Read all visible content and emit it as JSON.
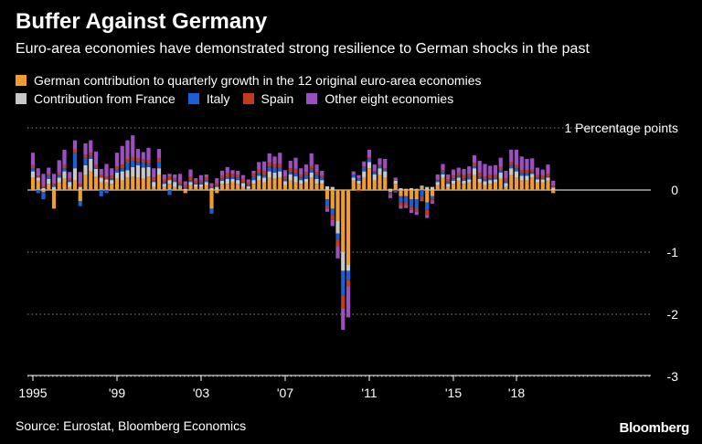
{
  "title": "Buffer Against Germany",
  "subtitle": "Euro-area economies have demonstrated strong resilience to German shocks in the past",
  "source": "Source: Eurostat, Bloomberg Economics",
  "brand": "Bloomberg",
  "legend": [
    {
      "label": "German contribution to quarterly growth in the 12 original euro-area economies",
      "color": "#f19c2f"
    },
    {
      "label": "Contribution from France",
      "color": "#c8c8c8"
    },
    {
      "label": "Italy",
      "color": "#1b5fd6"
    },
    {
      "label": "Spain",
      "color": "#c43a1f"
    },
    {
      "label": "Other eight economies",
      "color": "#9d4fc1"
    }
  ],
  "chart_data": {
    "type": "bar",
    "stacked": true,
    "title": "Buffer Against Germany",
    "ylabel": "Percentage points",
    "y_unit_label": "1 Percentage points",
    "ylim": [
      -3,
      1
    ],
    "yticks": [
      1,
      0,
      -1,
      -2,
      -3
    ],
    "ytick_labels": [
      "1 Percentage points",
      "0",
      "-1",
      "-2",
      "-3"
    ],
    "x_tick_labels": [
      "1995",
      "'99",
      "'03",
      "'07",
      "'11",
      "'15",
      "'18"
    ],
    "x_tick_years": [
      1995,
      1999,
      2003,
      2007,
      2011,
      2015,
      2018
    ],
    "start": 1995.0,
    "quarter_step": 0.25,
    "series": [
      {
        "name": "German contribution to quarterly growth in the 12 original euro-area economies",
        "color": "#f19c2f",
        "values": [
          0.2,
          0.15,
          -0.03,
          0.1,
          -0.3,
          0.12,
          0.18,
          0.05,
          0.15,
          -0.18,
          0.25,
          0.3,
          0.22,
          0.12,
          0.12,
          0.1,
          0.18,
          0.15,
          0.2,
          0.22,
          0.2,
          0.18,
          0.22,
          0.05,
          0.25,
          0.05,
          0.1,
          0.05,
          0.05,
          -0.05,
          0.08,
          0.05,
          0.05,
          0.08,
          -0.3,
          -0.05,
          0.1,
          0.1,
          0.12,
          0.1,
          0.05,
          0.02,
          0.1,
          0.15,
          0.12,
          0.2,
          0.18,
          0.2,
          0.08,
          0.15,
          0.12,
          0.1,
          0.12,
          0.2,
          0.1,
          0.1,
          -0.15,
          -0.3,
          -0.5,
          -1.0,
          -1.2,
          0.15,
          0.1,
          0.2,
          0.35,
          0.15,
          0.25,
          0.2,
          -0.03,
          0.1,
          -0.1,
          -0.1,
          -0.15,
          -0.15,
          0.05,
          -0.2,
          -0.1,
          0.08,
          0.2,
          0.05,
          0.1,
          0.15,
          0.1,
          0.12,
          0.25,
          0.12,
          0.08,
          0.1,
          0.12,
          0.18,
          0.05,
          0.25,
          0.2,
          0.15,
          0.15,
          0.2,
          0.12,
          0.12,
          0.15,
          -0.05
        ]
      },
      {
        "name": "Contribution from France",
        "color": "#c8c8c8",
        "values": [
          0.1,
          0.05,
          0.03,
          0.08,
          0.05,
          0.08,
          0.12,
          0.08,
          0.2,
          0.05,
          0.15,
          0.2,
          0.12,
          0.08,
          0.05,
          0.06,
          0.1,
          0.15,
          0.12,
          0.15,
          0.2,
          0.18,
          0.15,
          0.08,
          0.1,
          0.05,
          0.06,
          0.08,
          0.02,
          0.02,
          0.05,
          0.04,
          0.04,
          0.05,
          0.03,
          0.05,
          0.05,
          0.08,
          0.06,
          0.06,
          0.06,
          0.04,
          0.06,
          0.08,
          0.08,
          0.1,
          0.1,
          0.1,
          0.06,
          0.1,
          0.1,
          0.06,
          0.06,
          0.08,
          0.08,
          0.06,
          0.06,
          0.05,
          -0.2,
          -0.3,
          -0.1,
          0.05,
          0.05,
          0.1,
          0.1,
          0.1,
          0.1,
          0.1,
          0.02,
          0.05,
          0.03,
          0.02,
          0.03,
          0.02,
          0.02,
          0.05,
          0.05,
          0.05,
          0.05,
          0.05,
          0.05,
          0.05,
          0.05,
          0.05,
          0.1,
          0.06,
          0.06,
          0.06,
          0.05,
          0.1,
          0.06,
          0.1,
          0.1,
          0.08,
          0.08,
          0.06,
          0.05,
          0.05,
          0.05,
          0.04
        ]
      },
      {
        "name": "Italy",
        "color": "#1b5fd6",
        "values": [
          0.05,
          -0.05,
          -0.12,
          0.05,
          0.03,
          0.05,
          0.05,
          0.02,
          0.25,
          -0.08,
          0.12,
          0.05,
          0.02,
          -0.1,
          -0.05,
          0.03,
          0.05,
          0.05,
          0.12,
          0.1,
          0.05,
          0.08,
          0.05,
          0.02,
          0.1,
          0.03,
          -0.08,
          0.02,
          0.03,
          0.02,
          0.03,
          0.02,
          0.03,
          0.02,
          -0.08,
          0.02,
          0.03,
          0.04,
          0.03,
          0.04,
          0.02,
          0.02,
          0.05,
          0.04,
          0.05,
          0.08,
          0.08,
          0.06,
          0.03,
          0.04,
          0.06,
          0.04,
          0.06,
          0.06,
          0.06,
          0.04,
          -0.1,
          -0.1,
          -0.1,
          -0.4,
          -0.15,
          0.05,
          0.04,
          0.06,
          0.06,
          0.04,
          0.04,
          0.03,
          -0.03,
          -0.02,
          -0.1,
          -0.1,
          -0.12,
          -0.15,
          -0.1,
          -0.12,
          -0.05,
          0.02,
          0.04,
          0.03,
          0.03,
          0.03,
          0.04,
          0.04,
          0.04,
          0.04,
          0.03,
          0.03,
          0.03,
          0.04,
          0.03,
          0.05,
          0.05,
          0.04,
          0.04,
          0.03,
          0.03,
          0.02,
          0.02,
          0.0
        ]
      },
      {
        "name": "Spain",
        "color": "#c43a1f",
        "values": [
          0.05,
          0.03,
          0.03,
          0.03,
          0.03,
          0.03,
          0.05,
          0.04,
          0.05,
          0.04,
          0.05,
          0.05,
          0.04,
          0.04,
          0.05,
          0.04,
          0.05,
          0.06,
          0.06,
          0.06,
          0.06,
          0.05,
          0.06,
          0.05,
          0.06,
          0.04,
          0.05,
          0.04,
          0.04,
          0.04,
          0.05,
          0.04,
          0.04,
          0.05,
          0.03,
          0.04,
          0.05,
          0.05,
          0.05,
          0.05,
          0.05,
          0.04,
          0.05,
          0.06,
          0.06,
          0.06,
          0.06,
          0.06,
          0.05,
          0.06,
          0.06,
          0.05,
          0.05,
          0.05,
          0.05,
          0.03,
          -0.05,
          -0.08,
          -0.1,
          -0.2,
          -0.1,
          0.0,
          -0.02,
          0.02,
          0.02,
          0.02,
          0.02,
          0.02,
          -0.02,
          -0.02,
          -0.05,
          -0.05,
          -0.05,
          -0.05,
          -0.06,
          -0.08,
          -0.03,
          0.02,
          0.03,
          0.04,
          0.05,
          0.05,
          0.05,
          0.05,
          0.05,
          0.05,
          0.05,
          0.05,
          0.05,
          0.05,
          0.05,
          0.05,
          0.05,
          0.05,
          0.05,
          0.04,
          0.04,
          0.04,
          0.04,
          0.03
        ]
      },
      {
        "name": "Other eight economies",
        "color": "#9d4fc1",
        "values": [
          0.2,
          0.12,
          0.2,
          0.1,
          0.15,
          0.2,
          0.25,
          0.1,
          0.15,
          0.2,
          0.18,
          0.2,
          0.22,
          0.1,
          0.2,
          0.12,
          0.22,
          0.3,
          0.3,
          0.35,
          0.15,
          0.12,
          0.2,
          0.15,
          0.15,
          0.08,
          0.05,
          0.06,
          0.12,
          0.06,
          0.12,
          0.04,
          0.08,
          0.05,
          0.05,
          0.08,
          0.08,
          0.1,
          0.06,
          0.06,
          0.06,
          0.05,
          0.05,
          0.12,
          0.15,
          0.15,
          0.12,
          0.18,
          0.1,
          0.12,
          0.18,
          0.1,
          0.12,
          0.2,
          0.12,
          0.08,
          -0.05,
          -0.1,
          -0.2,
          -0.35,
          -0.5,
          0.05,
          0.05,
          0.08,
          0.12,
          0.1,
          0.1,
          0.15,
          -0.05,
          0.05,
          -0.05,
          -0.04,
          -0.05,
          -0.05,
          -0.02,
          -0.05,
          -0.04,
          0.08,
          0.1,
          0.08,
          0.1,
          0.08,
          0.1,
          0.12,
          0.12,
          0.2,
          0.2,
          0.15,
          0.15,
          0.15,
          0.12,
          0.2,
          0.25,
          0.22,
          0.18,
          0.18,
          0.12,
          0.1,
          0.15,
          0.08
        ]
      }
    ]
  }
}
